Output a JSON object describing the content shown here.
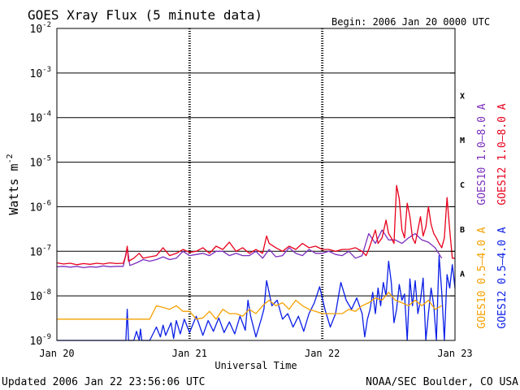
{
  "chart_data": {
    "type": "line",
    "title": "GOES Xray Flux (5 minute data)",
    "begin_label": "Begin:  2006 Jan 20 0000 UTC",
    "xlabel": "Universal Time",
    "ylabel": "Watts m",
    "ylabel_sup": "-2",
    "y_scale": "log",
    "ylim": [
      1e-09,
      0.01
    ],
    "y_ticks": [
      {
        "base": "10",
        "exp": "-9",
        "value": 1e-09
      },
      {
        "base": "10",
        "exp": "-8",
        "value": 1e-08
      },
      {
        "base": "10",
        "exp": "-7",
        "value": 1e-07
      },
      {
        "base": "10",
        "exp": "-6",
        "value": 1e-06
      },
      {
        "base": "10",
        "exp": "-5",
        "value": 1e-05
      },
      {
        "base": "10",
        "exp": "-4",
        "value": 0.0001
      },
      {
        "base": "10",
        "exp": "-3",
        "value": 0.001
      },
      {
        "base": "10",
        "exp": "-2",
        "value": 0.01
      }
    ],
    "xlim": [
      0,
      3
    ],
    "x_unit": "days since Jan 20 00:00 UTC",
    "x_ticks": [
      {
        "label": "Jan 20",
        "value": 0
      },
      {
        "label": "Jan 21",
        "value": 1
      },
      {
        "label": "Jan 22",
        "value": 2
      },
      {
        "label": "Jan 23",
        "value": 3
      }
    ],
    "flare_classes": [
      {
        "label": "X",
        "value": 0.000316
      },
      {
        "label": "M",
        "value": 3.16e-05
      },
      {
        "label": "C",
        "value": 3.16e-06
      },
      {
        "label": "B",
        "value": 3.16e-07
      },
      {
        "label": "A",
        "value": 3.16e-08
      }
    ],
    "legend": [
      {
        "name": "GOES10 1.0–8.0 A",
        "color": "#7b2fbe"
      },
      {
        "name": "GOES12 1.0–8.0 A",
        "color": "#e8001c"
      },
      {
        "name": "GOES10 0.5–4.0 A",
        "color": "#f5a100"
      },
      {
        "name": "GOES12 0.5–4.0 A",
        "color": "#0a1ee6"
      }
    ],
    "series": [
      {
        "name": "GOES12 0.5–4.0 A",
        "color": "#0a1ee6",
        "x": [
          0.0,
          0.52,
          0.53,
          0.54,
          0.58,
          0.6,
          0.62,
          0.63,
          0.64,
          0.7,
          0.75,
          0.78,
          0.8,
          0.82,
          0.86,
          0.88,
          0.9,
          0.93,
          0.96,
          1.0,
          1.05,
          1.1,
          1.14,
          1.18,
          1.22,
          1.26,
          1.3,
          1.34,
          1.38,
          1.42,
          1.44,
          1.46,
          1.5,
          1.54,
          1.56,
          1.58,
          1.62,
          1.66,
          1.7,
          1.74,
          1.78,
          1.82,
          1.86,
          1.9,
          1.94,
          1.98,
          2.02,
          2.06,
          2.1,
          2.14,
          2.18,
          2.22,
          2.26,
          2.3,
          2.32,
          2.34,
          2.36,
          2.38,
          2.4,
          2.42,
          2.44,
          2.46,
          2.48,
          2.5,
          2.52,
          2.54,
          2.56,
          2.58,
          2.6,
          2.62,
          2.64,
          2.66,
          2.68,
          2.7,
          2.72,
          2.74,
          2.76,
          2.78,
          2.8,
          2.82,
          2.84,
          2.86,
          2.88,
          2.9,
          2.92,
          2.94,
          2.96,
          2.98,
          3.0
        ],
        "y": [
          1e-09,
          1e-09,
          5e-09,
          1e-09,
          1e-09,
          1.6e-09,
          1e-09,
          1.8e-09,
          1e-09,
          1e-09,
          2e-09,
          1.2e-09,
          2.2e-09,
          1.3e-09,
          2.5e-09,
          1.1e-09,
          2.8e-09,
          1.4e-09,
          3e-09,
          1.5e-09,
          3.5e-09,
          1.3e-09,
          2.8e-09,
          1.6e-09,
          3.2e-09,
          1.5e-09,
          2.6e-09,
          1.4e-09,
          3.5e-09,
          1.7e-09,
          8e-09,
          3.5e-09,
          1.2e-09,
          3e-09,
          5e-09,
          2.2e-08,
          6e-09,
          8e-09,
          3e-09,
          4e-09,
          2e-09,
          3.5e-09,
          1.6e-09,
          4e-09,
          7e-09,
          1.6e-08,
          5e-09,
          2e-09,
          4e-09,
          2e-08,
          8e-09,
          5e-09,
          9e-09,
          4e-09,
          1.2e-09,
          3e-09,
          5e-09,
          1.2e-08,
          4e-09,
          1.5e-08,
          6e-09,
          2e-08,
          1e-08,
          6e-08,
          2e-08,
          2.5e-09,
          5e-09,
          1.8e-08,
          8e-09,
          1.1e-08,
          1e-09,
          2.4e-08,
          6e-09,
          2.2e-08,
          4e-09,
          8e-09,
          2.5e-08,
          1e-09,
          4e-09,
          1.5e-08,
          6e-09,
          1e-09,
          8e-08,
          1.2e-08,
          1e-09,
          3e-08,
          1.5e-08,
          5e-08,
          1.5e-08
        ]
      },
      {
        "name": "GOES10 0.5–4.0 A",
        "color": "#f5a100",
        "x": [
          0.0,
          0.05,
          0.1,
          0.15,
          0.2,
          0.25,
          0.3,
          0.35,
          0.4,
          0.45,
          0.5,
          0.55,
          0.6,
          0.65,
          0.7,
          0.75,
          0.8,
          0.85,
          0.9,
          0.95,
          1.0,
          1.05,
          1.1,
          1.15,
          1.2,
          1.25,
          1.3,
          1.35,
          1.4,
          1.45,
          1.5,
          1.55,
          1.6,
          1.65,
          1.7,
          1.75,
          1.8,
          1.85,
          1.9,
          1.95,
          2.0,
          2.05,
          2.1,
          2.15,
          2.2,
          2.25,
          2.3,
          2.35,
          2.4,
          2.45,
          2.5,
          2.55,
          2.6,
          2.65,
          2.7,
          2.75,
          2.8,
          2.85,
          2.9
        ],
        "y": [
          3e-09,
          3e-09,
          3e-09,
          3e-09,
          3e-09,
          3e-09,
          3e-09,
          3e-09,
          3e-09,
          3e-09,
          3e-09,
          3e-09,
          3e-09,
          3e-09,
          3e-09,
          6e-09,
          5.5e-09,
          5e-09,
          6e-09,
          4.5e-09,
          4.5e-09,
          3e-09,
          3.2e-09,
          4.5e-09,
          3e-09,
          5e-09,
          4e-09,
          4e-09,
          3.5e-09,
          5e-09,
          4e-09,
          6e-09,
          8e-09,
          6e-09,
          7e-09,
          5e-09,
          8e-09,
          6e-09,
          5e-09,
          4.5e-09,
          4e-09,
          4e-09,
          4e-09,
          4e-09,
          5e-09,
          4.5e-09,
          6e-09,
          7e-09,
          9e-09,
          8e-09,
          1.2e-08,
          8e-09,
          7e-09,
          6e-09,
          8e-09,
          6e-09,
          8e-09,
          5e-09,
          6e-09
        ]
      },
      {
        "name": "GOES10 1.0–8.0 A",
        "color": "#7b2fbe",
        "x": [
          0.0,
          0.05,
          0.1,
          0.15,
          0.2,
          0.25,
          0.3,
          0.35,
          0.4,
          0.45,
          0.5,
          0.53,
          0.55,
          0.6,
          0.65,
          0.7,
          0.75,
          0.8,
          0.85,
          0.9,
          0.95,
          1.0,
          1.05,
          1.1,
          1.15,
          1.2,
          1.25,
          1.3,
          1.35,
          1.4,
          1.45,
          1.5,
          1.55,
          1.6,
          1.65,
          1.7,
          1.75,
          1.8,
          1.85,
          1.9,
          1.95,
          2.0,
          2.05,
          2.1,
          2.15,
          2.2,
          2.25,
          2.3,
          2.35,
          2.4,
          2.45,
          2.5,
          2.55,
          2.6,
          2.65,
          2.7,
          2.75,
          2.8,
          2.85,
          2.9
        ],
        "y": [
          4.5e-08,
          4.6e-08,
          4.4e-08,
          4.6e-08,
          4.3e-08,
          4.5e-08,
          4.4e-08,
          4.7e-08,
          4.5e-08,
          4.6e-08,
          4.6e-08,
          1.2e-07,
          4.8e-08,
          5.5e-08,
          6.5e-08,
          6e-08,
          6.5e-08,
          7.5e-08,
          6.5e-08,
          7e-08,
          1e-07,
          8e-08,
          8.5e-08,
          9e-08,
          8e-08,
          1e-07,
          1e-07,
          8e-08,
          9e-08,
          8e-08,
          8e-08,
          1e-07,
          7e-08,
          1.1e-07,
          7.5e-08,
          8e-08,
          1.2e-07,
          9e-08,
          8e-08,
          1.1e-07,
          9e-08,
          9e-08,
          1e-07,
          8.5e-08,
          8e-08,
          1e-07,
          7e-08,
          8e-08,
          2.5e-07,
          1.5e-07,
          3e-07,
          1.8e-07,
          1.8e-07,
          1.5e-07,
          2e-07,
          2.5e-07,
          1.8e-07,
          1.6e-07,
          1.2e-07,
          7e-08
        ]
      },
      {
        "name": "GOES12 1.0–8.0 A",
        "color": "#e8001c",
        "x": [
          0.0,
          0.05,
          0.1,
          0.15,
          0.2,
          0.25,
          0.3,
          0.35,
          0.4,
          0.45,
          0.5,
          0.52,
          0.53,
          0.54,
          0.58,
          0.62,
          0.65,
          0.7,
          0.75,
          0.8,
          0.85,
          0.9,
          0.95,
          1.0,
          1.05,
          1.1,
          1.15,
          1.2,
          1.25,
          1.3,
          1.35,
          1.4,
          1.45,
          1.5,
          1.55,
          1.58,
          1.6,
          1.65,
          1.7,
          1.75,
          1.8,
          1.85,
          1.9,
          1.95,
          2.0,
          2.05,
          2.1,
          2.15,
          2.2,
          2.25,
          2.3,
          2.33,
          2.35,
          2.38,
          2.4,
          2.42,
          2.45,
          2.48,
          2.5,
          2.52,
          2.54,
          2.56,
          2.58,
          2.6,
          2.62,
          2.64,
          2.66,
          2.68,
          2.7,
          2.72,
          2.74,
          2.76,
          2.78,
          2.8,
          2.82,
          2.84,
          2.86,
          2.88,
          2.9,
          2.92,
          2.94,
          2.96,
          2.98,
          3.0
        ],
        "y": [
          5.5e-08,
          5.2e-08,
          5.4e-08,
          5e-08,
          5.3e-08,
          5.1e-08,
          5.4e-08,
          5.2e-08,
          5.5e-08,
          5.3e-08,
          5.4e-08,
          8e-08,
          1.3e-07,
          6e-08,
          7e-08,
          9e-08,
          7e-08,
          7.5e-08,
          8e-08,
          1.2e-07,
          8e-08,
          9e-08,
          1.1e-07,
          9.5e-08,
          1e-07,
          1.2e-07,
          9e-08,
          1.3e-07,
          1.1e-07,
          1.6e-07,
          1e-07,
          1.2e-07,
          9e-08,
          1.1e-07,
          9e-08,
          2.2e-07,
          1.5e-07,
          1.2e-07,
          1e-07,
          1.3e-07,
          1.1e-07,
          1.5e-07,
          1.2e-07,
          1.3e-07,
          1.1e-07,
          1.1e-07,
          1e-07,
          1.1e-07,
          1.1e-07,
          1.2e-07,
          1e-07,
          8e-08,
          1.1e-07,
          2e-07,
          3e-07,
          1.5e-07,
          2e-07,
          5e-07,
          2.5e-07,
          2e-07,
          1.5e-07,
          3e-06,
          1.5e-06,
          3e-07,
          2e-07,
          1.2e-06,
          6e-07,
          2e-07,
          1.5e-07,
          3e-07,
          6e-07,
          2.2e-07,
          3.5e-07,
          1e-06,
          4e-07,
          2.5e-07,
          2e-07,
          1.5e-07,
          1.2e-07,
          2e-07,
          1.6e-06,
          3e-07,
          7e-08,
          7e-08
        ]
      }
    ],
    "grid": true,
    "legend_position": "right, vertical"
  },
  "footer": {
    "updated": "Updated 2006 Jan 22 23:56:06 UTC",
    "credit": "NOAA/SEC Boulder, CO USA"
  }
}
